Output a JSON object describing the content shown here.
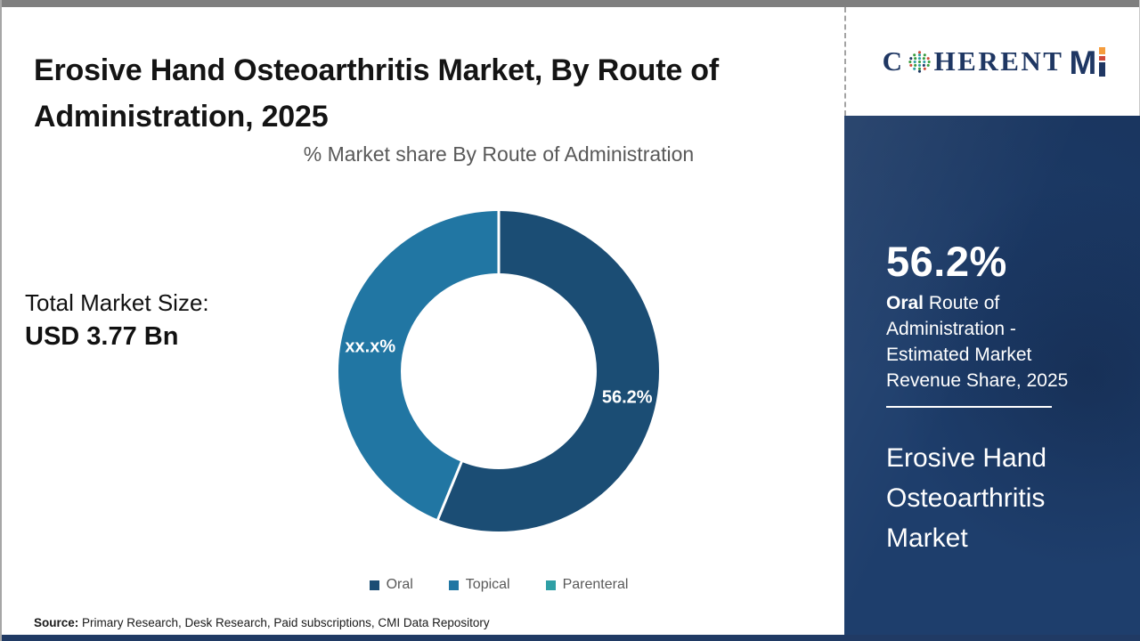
{
  "page": {
    "title": "Erosive Hand Osteoarthritis Market, By Route of Administration, 2025",
    "source_label": "Source:",
    "source_text": " Primary Research, Desk Research, Paid subscriptions, CMI Data Repository"
  },
  "logo": {
    "part_c": "C",
    "part_herent": "HERENT",
    "part_m": "M"
  },
  "left_panel": {
    "total_label": "Total Market Size:",
    "total_value": "USD 3.77 Bn"
  },
  "sidebar": {
    "share_value": "56.2%",
    "desc_bold": "Oral",
    "desc_rest": " Route of Administration - Estimated Market Revenue Share, 2025",
    "market_name": "Erosive Hand Osteoarthritis Market"
  },
  "chart_data": {
    "type": "pie",
    "donut": true,
    "title": "% Market share By Route of Administration",
    "legend_position": "bottom",
    "categories": [
      "Oral",
      "Topical",
      "Parenteral"
    ],
    "series": [
      {
        "name": "Oral",
        "value": 56.2,
        "label": "56.2%",
        "color": "#1b4d74"
      },
      {
        "name": "Topical",
        "value": 43.8,
        "label": "xx.x%",
        "color": "#2176a3"
      },
      {
        "name": "Parenteral",
        "value": 0,
        "label": "",
        "color": "#2f9fa5"
      }
    ]
  },
  "colors": {
    "sidebar_navy": "#1e3e6c",
    "bottom_bar_navy": "#203a64",
    "top_bar_gray": "#7f7f7f",
    "logo_navy": "#1f3763",
    "logo_orange": "#f59d3d",
    "subtitle_gray": "#595959"
  }
}
